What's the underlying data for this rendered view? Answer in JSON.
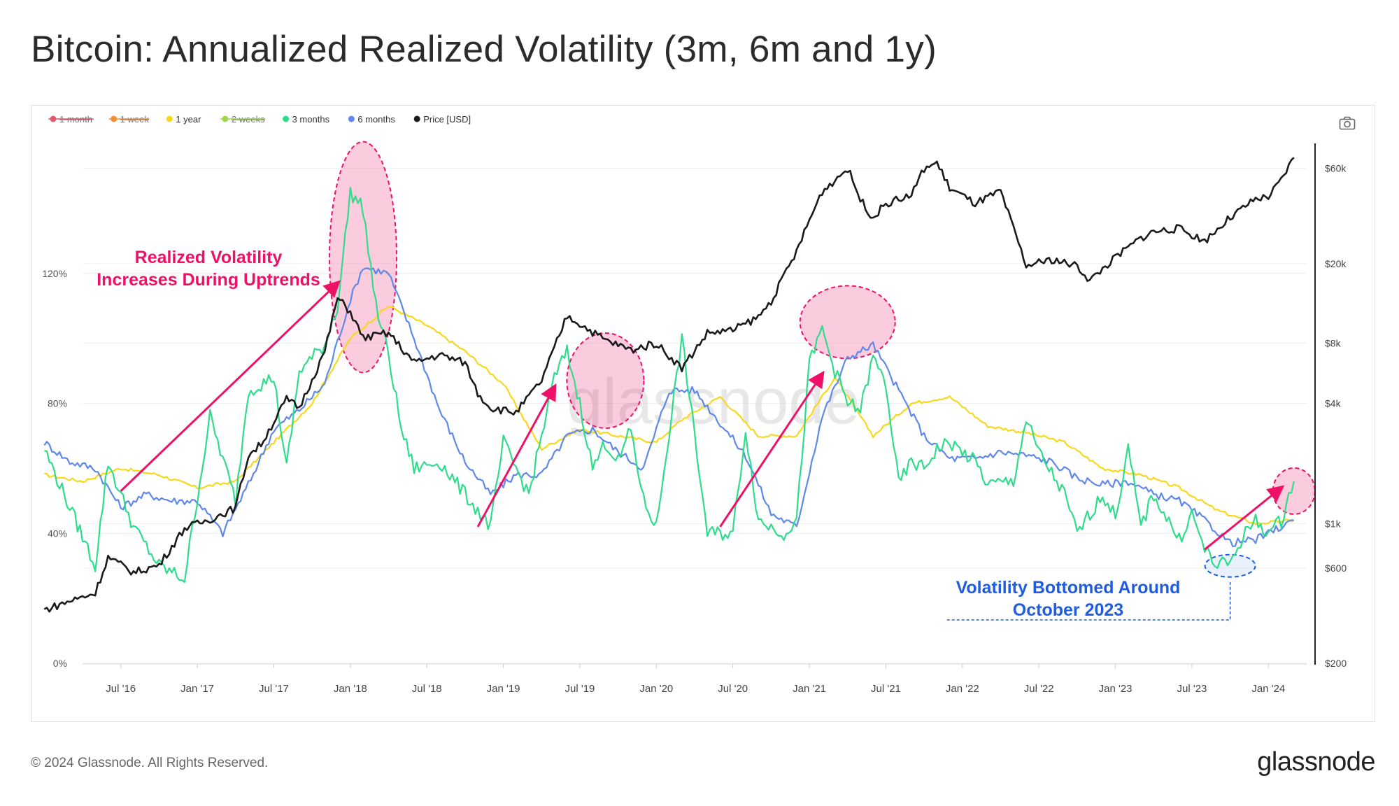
{
  "title": "Bitcoin: Annualized Realized Volatility (3m, 6m and 1y)",
  "footer": {
    "copyright": "© 2024 Glassnode. All Rights Reserved.",
    "brand": "glassnode"
  },
  "watermark": "glassnode",
  "icons": {
    "export": "camera-icon"
  },
  "chart_data": {
    "type": "line",
    "title": "Bitcoin: Annualized Realized Volatility (3m, 6m and 1y)",
    "x_ticks": [
      "Jul '16",
      "Jan '17",
      "Jul '17",
      "Jan '18",
      "Jul '18",
      "Jan '19",
      "Jul '19",
      "Jan '20",
      "Jul '20",
      "Jan '21",
      "Jul '21",
      "Jan '22",
      "Jul '22",
      "Jan '23",
      "Jul '23",
      "Jan '24"
    ],
    "y_left": {
      "ticks": [
        "0%",
        "40%",
        "80%",
        "120%"
      ],
      "values": [
        0,
        40,
        80,
        120
      ],
      "range": [
        0,
        160
      ]
    },
    "y_right": {
      "scale": "log",
      "ticks": [
        "$200",
        "$600",
        "$1k",
        "$4k",
        "$8k",
        "$20k",
        "$60k"
      ],
      "values": [
        200,
        600,
        1000,
        4000,
        8000,
        20000,
        60000
      ],
      "range": [
        200,
        80000
      ]
    },
    "legend": {
      "placement": "top-left",
      "items": [
        {
          "label": "1 month",
          "color": "#e5566f",
          "disabled": true
        },
        {
          "label": "1 week",
          "color": "#f0913a",
          "disabled": true
        },
        {
          "label": "1 year",
          "color": "#f7d81e",
          "disabled": false
        },
        {
          "label": "2 weeks",
          "color": "#9bd94a",
          "disabled": true
        },
        {
          "label": "3 months",
          "color": "#2fdc8c",
          "disabled": false
        },
        {
          "label": "6 months",
          "color": "#5f88ea",
          "disabled": false
        },
        {
          "label": "Price [USD]",
          "color": "#1a1a1a",
          "disabled": false
        }
      ]
    },
    "series": [
      {
        "name": "1 year",
        "color": "#f7d81e",
        "x": [
          "2016-01",
          "2016-04",
          "2016-07",
          "2016-10",
          "2017-01",
          "2017-04",
          "2017-07",
          "2017-10",
          "2018-01",
          "2018-04",
          "2018-07",
          "2018-10",
          "2019-01",
          "2019-04",
          "2019-07",
          "2019-10",
          "2020-01",
          "2020-03",
          "2020-06",
          "2020-09",
          "2020-12",
          "2021-03",
          "2021-06",
          "2021-09",
          "2021-12",
          "2022-03",
          "2022-06",
          "2022-09",
          "2022-12",
          "2023-03",
          "2023-06",
          "2023-09",
          "2023-12",
          "2024-03"
        ],
        "values": [
          58,
          56,
          60,
          58,
          54,
          56,
          68,
          80,
          100,
          110,
          104,
          96,
          86,
          66,
          72,
          70,
          68,
          75,
          82,
          70,
          70,
          88,
          70,
          80,
          82,
          73,
          71,
          68,
          60,
          58,
          54,
          47,
          43,
          44
        ]
      },
      {
        "name": "6 months",
        "color": "#5f88ea",
        "x": [
          "2016-01",
          "2016-03",
          "2016-05",
          "2016-07",
          "2016-09",
          "2016-11",
          "2017-01",
          "2017-03",
          "2017-05",
          "2017-07",
          "2017-09",
          "2017-11",
          "2018-01",
          "2018-02",
          "2018-04",
          "2018-06",
          "2018-08",
          "2018-10",
          "2018-12",
          "2019-02",
          "2019-04",
          "2019-06",
          "2019-08",
          "2019-10",
          "2019-12",
          "2020-02",
          "2020-04",
          "2020-06",
          "2020-08",
          "2020-10",
          "2020-12",
          "2021-02",
          "2021-04",
          "2021-06",
          "2021-08",
          "2021-10",
          "2021-12",
          "2022-02",
          "2022-04",
          "2022-06",
          "2022-08",
          "2022-10",
          "2022-12",
          "2023-02",
          "2023-04",
          "2023-06",
          "2023-08",
          "2023-10",
          "2023-12",
          "2024-02",
          "2024-03"
        ],
        "values": [
          68,
          62,
          60,
          48,
          52,
          50,
          50,
          40,
          55,
          72,
          78,
          86,
          112,
          122,
          120,
          100,
          78,
          62,
          52,
          58,
          58,
          70,
          72,
          65,
          60,
          84,
          84,
          74,
          64,
          46,
          42,
          76,
          94,
          98,
          84,
          70,
          63,
          63,
          65,
          64,
          62,
          57,
          55,
          56,
          52,
          50,
          44,
          37,
          38,
          42,
          44
        ]
      },
      {
        "name": "3 months",
        "color": "#2fdc8c",
        "x": [
          "2016-01",
          "2016-03",
          "2016-05",
          "2016-06",
          "2016-08",
          "2016-10",
          "2016-12",
          "2017-02",
          "2017-04",
          "2017-05",
          "2017-07",
          "2017-08",
          "2017-09",
          "2017-11",
          "2017-12",
          "2018-01",
          "2018-02",
          "2018-03",
          "2018-04",
          "2018-05",
          "2018-06",
          "2018-08",
          "2018-10",
          "2018-12",
          "2019-01",
          "2019-03",
          "2019-05",
          "2019-06",
          "2019-07",
          "2019-08",
          "2019-09",
          "2019-10",
          "2019-11",
          "2019-12",
          "2020-01",
          "2020-03",
          "2020-04",
          "2020-05",
          "2020-07",
          "2020-08",
          "2020-09",
          "2020-11",
          "2020-12",
          "2021-01",
          "2021-02",
          "2021-03",
          "2021-04",
          "2021-05",
          "2021-06",
          "2021-07",
          "2021-08",
          "2021-09",
          "2021-10",
          "2021-11",
          "2021-12",
          "2022-02",
          "2022-03",
          "2022-05",
          "2022-06",
          "2022-07",
          "2022-09",
          "2022-10",
          "2022-12",
          "2023-01",
          "2023-02",
          "2023-03",
          "2023-04",
          "2023-06",
          "2023-07",
          "2023-08",
          "2023-09",
          "2023-10",
          "2023-11",
          "2023-12",
          "2024-01",
          "2024-02",
          "2024-03"
        ],
        "values": [
          66,
          48,
          30,
          62,
          42,
          30,
          26,
          76,
          50,
          84,
          88,
          60,
          90,
          98,
          110,
          145,
          140,
          110,
          95,
          72,
          60,
          62,
          52,
          42,
          68,
          52,
          88,
          96,
          80,
          60,
          68,
          62,
          72,
          50,
          42,
          100,
          70,
          40,
          40,
          72,
          44,
          40,
          44,
          92,
          103,
          90,
          80,
          78,
          94,
          86,
          55,
          62,
          60,
          66,
          68,
          62,
          55,
          56,
          75,
          65,
          52,
          40,
          52,
          45,
          66,
          42,
          52,
          38,
          46,
          35,
          30,
          31,
          39,
          44,
          40,
          44,
          56
        ]
      },
      {
        "name": "Price [USD]",
        "color": "#1a1a1a",
        "axis": "right",
        "x": [
          "2016-01",
          "2016-03",
          "2016-05",
          "2016-06",
          "2016-08",
          "2016-10",
          "2016-12",
          "2017-02",
          "2017-04",
          "2017-05",
          "2017-06",
          "2017-08",
          "2017-09",
          "2017-11",
          "2017-12",
          "2018-01",
          "2018-02",
          "2018-04",
          "2018-06",
          "2018-08",
          "2018-10",
          "2018-11",
          "2018-12",
          "2019-02",
          "2019-04",
          "2019-06",
          "2019-07",
          "2019-09",
          "2019-11",
          "2020-01",
          "2020-03",
          "2020-05",
          "2020-07",
          "2020-09",
          "2020-10",
          "2020-12",
          "2021-01",
          "2021-02",
          "2021-04",
          "2021-05",
          "2021-06",
          "2021-07",
          "2021-09",
          "2021-10",
          "2021-11",
          "2021-12",
          "2022-02",
          "2022-04",
          "2022-05",
          "2022-06",
          "2022-08",
          "2022-10",
          "2022-11",
          "2023-01",
          "2023-03",
          "2023-04",
          "2023-06",
          "2023-08",
          "2023-10",
          "2023-12",
          "2024-01",
          "2024-02",
          "2024-03"
        ],
        "values": [
          370,
          410,
          450,
          680,
          570,
          620,
          950,
          1050,
          1200,
          2200,
          2500,
          4200,
          3800,
          7300,
          13500,
          11500,
          8500,
          9000,
          6400,
          7000,
          6400,
          4500,
          3800,
          3600,
          5200,
          11000,
          10000,
          8300,
          7400,
          8000,
          6000,
          9000,
          9300,
          10800,
          13000,
          23000,
          33000,
          46000,
          60000,
          42000,
          34000,
          40000,
          44000,
          60000,
          64000,
          48000,
          40000,
          46000,
          30000,
          19500,
          21000,
          19500,
          16500,
          21500,
          27000,
          29000,
          30000,
          26000,
          34000,
          42000,
          43000,
          52000,
          68000
        ]
      }
    ],
    "annotations": [
      {
        "text": "Realized Volatility Increases During Uptrends",
        "lines": [
          "Realized Volatility",
          "Increases During Uptrends"
        ],
        "color": "#ee1167"
      },
      {
        "text": "Volatility Bottomed Around October 2023",
        "lines": [
          "Volatility Bottomed Around",
          "October 2023"
        ],
        "color": "#1f5de0"
      }
    ],
    "grid": true
  }
}
